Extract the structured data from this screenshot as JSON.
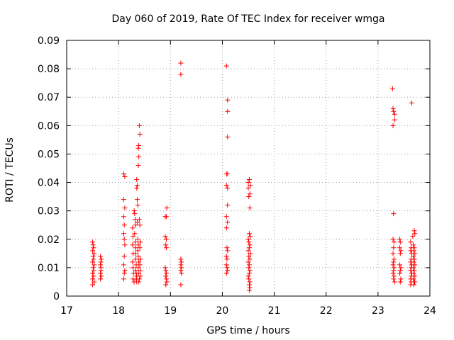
{
  "chart_data": {
    "type": "scatter",
    "title": "Day 060 of 2019, Rate Of TEC Index for receiver wmga",
    "xlabel": "GPS time / hours",
    "ylabel": "ROTI / TECUs",
    "xlim": [
      17,
      24
    ],
    "ylim": [
      0,
      0.09
    ],
    "grid": true,
    "x_ticks": [
      "17",
      "18",
      "19",
      "20",
      "21",
      "22",
      "23",
      "24"
    ],
    "y_ticks": [
      "0",
      "0.01",
      "0.02",
      "0.03",
      "0.04",
      "0.05",
      "0.06",
      "0.07",
      "0.08",
      "0.09"
    ],
    "marker": "plus",
    "marker_color": "#ff0000",
    "series": [
      {
        "name": "ROTI",
        "points": [
          [
            17.5,
            0.004
          ],
          [
            17.5,
            0.006
          ],
          [
            17.5,
            0.008
          ],
          [
            17.51,
            0.01
          ],
          [
            17.5,
            0.012
          ],
          [
            17.51,
            0.014
          ],
          [
            17.5,
            0.016
          ],
          [
            17.51,
            0.018
          ],
          [
            17.5,
            0.019
          ],
          [
            17.52,
            0.007
          ],
          [
            17.52,
            0.009
          ],
          [
            17.53,
            0.011
          ],
          [
            17.52,
            0.013
          ],
          [
            17.53,
            0.015
          ],
          [
            17.52,
            0.017
          ],
          [
            17.53,
            0.005
          ],
          [
            17.65,
            0.006
          ],
          [
            17.65,
            0.008
          ],
          [
            17.66,
            0.01
          ],
          [
            17.65,
            0.011
          ],
          [
            17.66,
            0.012
          ],
          [
            17.65,
            0.014
          ],
          [
            17.66,
            0.009
          ],
          [
            17.67,
            0.007
          ],
          [
            17.67,
            0.013
          ],
          [
            18.1,
            0.043
          ],
          [
            18.12,
            0.042
          ],
          [
            18.1,
            0.034
          ],
          [
            18.12,
            0.031
          ],
          [
            18.1,
            0.028
          ],
          [
            18.11,
            0.025
          ],
          [
            18.1,
            0.022
          ],
          [
            18.11,
            0.02
          ],
          [
            18.12,
            0.018
          ],
          [
            18.11,
            0.014
          ],
          [
            18.1,
            0.011
          ],
          [
            18.12,
            0.009
          ],
          [
            18.11,
            0.008
          ],
          [
            18.1,
            0.006
          ],
          [
            18.27,
            0.024
          ],
          [
            18.28,
            0.021
          ],
          [
            18.27,
            0.018
          ],
          [
            18.28,
            0.015
          ],
          [
            18.27,
            0.012
          ],
          [
            18.28,
            0.01
          ],
          [
            18.29,
            0.008
          ],
          [
            18.28,
            0.006
          ],
          [
            18.3,
            0.005
          ],
          [
            18.3,
            0.03
          ],
          [
            18.31,
            0.029
          ],
          [
            18.32,
            0.027
          ],
          [
            18.33,
            0.025
          ],
          [
            18.31,
            0.022
          ],
          [
            18.32,
            0.019
          ],
          [
            18.33,
            0.017
          ],
          [
            18.32,
            0.015
          ],
          [
            18.33,
            0.013
          ],
          [
            18.34,
            0.011
          ],
          [
            18.33,
            0.009
          ],
          [
            18.34,
            0.008
          ],
          [
            18.35,
            0.007
          ],
          [
            18.34,
            0.006
          ],
          [
            18.35,
            0.005
          ],
          [
            18.35,
            0.041
          ],
          [
            18.36,
            0.039
          ],
          [
            18.35,
            0.038
          ],
          [
            18.36,
            0.034
          ],
          [
            18.37,
            0.032
          ],
          [
            18.36,
            0.026
          ],
          [
            18.37,
            0.02
          ],
          [
            18.38,
            0.018
          ],
          [
            18.37,
            0.016
          ],
          [
            18.38,
            0.014
          ],
          [
            18.39,
            0.012
          ],
          [
            18.38,
            0.01
          ],
          [
            18.39,
            0.008
          ],
          [
            18.4,
            0.006
          ],
          [
            18.39,
            0.005
          ],
          [
            18.38,
            0.052
          ],
          [
            18.39,
            0.053
          ],
          [
            18.39,
            0.049
          ],
          [
            18.38,
            0.046
          ],
          [
            18.4,
            0.06
          ],
          [
            18.41,
            0.057
          ],
          [
            18.4,
            0.027
          ],
          [
            18.41,
            0.025
          ],
          [
            18.42,
            0.019
          ],
          [
            18.41,
            0.017
          ],
          [
            18.42,
            0.013
          ],
          [
            18.41,
            0.011
          ],
          [
            18.42,
            0.009
          ],
          [
            18.42,
            0.007
          ],
          [
            18.9,
            0.028
          ],
          [
            18.92,
            0.028
          ],
          [
            18.93,
            0.031
          ],
          [
            18.9,
            0.021
          ],
          [
            18.92,
            0.02
          ],
          [
            18.91,
            0.018
          ],
          [
            18.92,
            0.017
          ],
          [
            18.9,
            0.01
          ],
          [
            18.91,
            0.009
          ],
          [
            18.92,
            0.008
          ],
          [
            18.91,
            0.007
          ],
          [
            18.92,
            0.006
          ],
          [
            18.93,
            0.005
          ],
          [
            18.91,
            0.004
          ],
          [
            19.2,
            0.082
          ],
          [
            19.2,
            0.078
          ],
          [
            19.2,
            0.013
          ],
          [
            19.21,
            0.012
          ],
          [
            19.2,
            0.011
          ],
          [
            19.21,
            0.01
          ],
          [
            19.2,
            0.009
          ],
          [
            19.21,
            0.008
          ],
          [
            19.2,
            0.004
          ],
          [
            20.08,
            0.081
          ],
          [
            20.1,
            0.069
          ],
          [
            20.1,
            0.065
          ],
          [
            20.1,
            0.056
          ],
          [
            20.08,
            0.043
          ],
          [
            20.1,
            0.043
          ],
          [
            20.08,
            0.039
          ],
          [
            20.1,
            0.038
          ],
          [
            20.1,
            0.032
          ],
          [
            20.08,
            0.028
          ],
          [
            20.1,
            0.026
          ],
          [
            20.08,
            0.024
          ],
          [
            20.09,
            0.017
          ],
          [
            20.1,
            0.016
          ],
          [
            20.08,
            0.014
          ],
          [
            20.09,
            0.013
          ],
          [
            20.08,
            0.011
          ],
          [
            20.09,
            0.01
          ],
          [
            20.1,
            0.009
          ],
          [
            20.08,
            0.008
          ],
          [
            20.5,
            0.04
          ],
          [
            20.52,
            0.041
          ],
          [
            20.54,
            0.039
          ],
          [
            20.5,
            0.038
          ],
          [
            20.53,
            0.036
          ],
          [
            20.51,
            0.035
          ],
          [
            20.53,
            0.031
          ],
          [
            20.52,
            0.022
          ],
          [
            20.54,
            0.021
          ],
          [
            20.5,
            0.02
          ],
          [
            20.51,
            0.019
          ],
          [
            20.53,
            0.018
          ],
          [
            20.52,
            0.017
          ],
          [
            20.5,
            0.016
          ],
          [
            20.54,
            0.015
          ],
          [
            20.51,
            0.014
          ],
          [
            20.53,
            0.013
          ],
          [
            20.5,
            0.012
          ],
          [
            20.52,
            0.011
          ],
          [
            20.51,
            0.01
          ],
          [
            20.53,
            0.009
          ],
          [
            20.52,
            0.008
          ],
          [
            20.5,
            0.007
          ],
          [
            20.51,
            0.006
          ],
          [
            20.53,
            0.005
          ],
          [
            20.52,
            0.004
          ],
          [
            20.53,
            0.003
          ],
          [
            20.52,
            0.002
          ],
          [
            23.28,
            0.073
          ],
          [
            23.29,
            0.066
          ],
          [
            23.3,
            0.065
          ],
          [
            23.32,
            0.064
          ],
          [
            23.32,
            0.062
          ],
          [
            23.29,
            0.06
          ],
          [
            23.3,
            0.029
          ],
          [
            23.29,
            0.02
          ],
          [
            23.31,
            0.019
          ],
          [
            23.3,
            0.017
          ],
          [
            23.29,
            0.015
          ],
          [
            23.31,
            0.013
          ],
          [
            23.3,
            0.012
          ],
          [
            23.29,
            0.011
          ],
          [
            23.31,
            0.01
          ],
          [
            23.3,
            0.009
          ],
          [
            23.29,
            0.008
          ],
          [
            23.31,
            0.007
          ],
          [
            23.3,
            0.006
          ],
          [
            23.32,
            0.005
          ],
          [
            23.42,
            0.02
          ],
          [
            23.43,
            0.019
          ],
          [
            23.42,
            0.017
          ],
          [
            23.44,
            0.016
          ],
          [
            23.43,
            0.015
          ],
          [
            23.42,
            0.011
          ],
          [
            23.44,
            0.01
          ],
          [
            23.43,
            0.009
          ],
          [
            23.42,
            0.008
          ],
          [
            23.44,
            0.006
          ],
          [
            23.43,
            0.005
          ],
          [
            23.65,
            0.068
          ],
          [
            23.63,
            0.019
          ],
          [
            23.64,
            0.017
          ],
          [
            23.63,
            0.016
          ],
          [
            23.65,
            0.015
          ],
          [
            23.64,
            0.013
          ],
          [
            23.63,
            0.012
          ],
          [
            23.65,
            0.011
          ],
          [
            23.64,
            0.01
          ],
          [
            23.63,
            0.009
          ],
          [
            23.65,
            0.008
          ],
          [
            23.64,
            0.007
          ],
          [
            23.63,
            0.006
          ],
          [
            23.64,
            0.005
          ],
          [
            23.63,
            0.004
          ],
          [
            23.67,
            0.021
          ],
          [
            23.7,
            0.023
          ],
          [
            23.71,
            0.022
          ],
          [
            23.68,
            0.018
          ],
          [
            23.7,
            0.017
          ],
          [
            23.69,
            0.016
          ],
          [
            23.71,
            0.015
          ],
          [
            23.68,
            0.014
          ],
          [
            23.7,
            0.013
          ],
          [
            23.69,
            0.012
          ],
          [
            23.71,
            0.011
          ],
          [
            23.68,
            0.01
          ],
          [
            23.7,
            0.009
          ],
          [
            23.69,
            0.008
          ],
          [
            23.71,
            0.007
          ],
          [
            23.68,
            0.006
          ],
          [
            23.7,
            0.005
          ],
          [
            23.69,
            0.004
          ],
          [
            23.71,
            0.005
          ]
        ]
      }
    ]
  }
}
